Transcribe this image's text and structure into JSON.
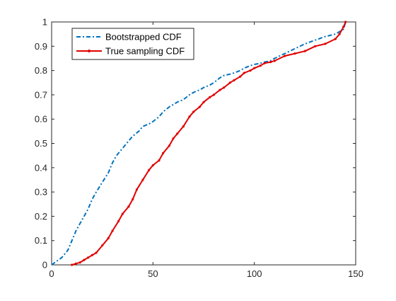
{
  "chart_data": {
    "type": "line",
    "title": "",
    "xlabel": "",
    "ylabel": "",
    "xlim": [
      0,
      150
    ],
    "ylim": [
      0,
      1
    ],
    "xticks": [
      0,
      50,
      100,
      150
    ],
    "xtick_labels": [
      "0",
      "50",
      "100",
      "150"
    ],
    "yticks": [
      0,
      0.1,
      0.2,
      0.3,
      0.4,
      0.5,
      0.6,
      0.7,
      0.8,
      0.9,
      1
    ],
    "ytick_labels": [
      "0",
      "0.1",
      "0.2",
      "0.3",
      "0.4",
      "0.5",
      "0.6",
      "0.7",
      "0.8",
      "0.9",
      "1"
    ],
    "grid": false,
    "legend_position": "top-left",
    "series": [
      {
        "name": "Bootstrapped CDF",
        "color": "#0072BD",
        "style": "dash-dot",
        "x": [
          0,
          5,
          8,
          10,
          12,
          14,
          16,
          18,
          20,
          22,
          25,
          28,
          30,
          32,
          35,
          38,
          40,
          43,
          45,
          48,
          50,
          53,
          55,
          58,
          60,
          62,
          65,
          68,
          70,
          73,
          75,
          78,
          80,
          83,
          85,
          88,
          90,
          93,
          95,
          98,
          100,
          103,
          105,
          108,
          110,
          115,
          120,
          125,
          130,
          135,
          140,
          142,
          144,
          145
        ],
        "y": [
          0,
          0.03,
          0.06,
          0.1,
          0.14,
          0.17,
          0.2,
          0.23,
          0.27,
          0.3,
          0.34,
          0.38,
          0.42,
          0.45,
          0.48,
          0.51,
          0.53,
          0.55,
          0.57,
          0.58,
          0.59,
          0.61,
          0.63,
          0.65,
          0.66,
          0.67,
          0.68,
          0.7,
          0.71,
          0.72,
          0.73,
          0.74,
          0.75,
          0.77,
          0.78,
          0.785,
          0.79,
          0.8,
          0.81,
          0.82,
          0.825,
          0.83,
          0.835,
          0.84,
          0.85,
          0.87,
          0.89,
          0.91,
          0.925,
          0.94,
          0.95,
          0.96,
          0.97,
          1.0
        ]
      },
      {
        "name": "True sampling CDF",
        "color": "#E00000",
        "style": "solid-marker",
        "x": [
          10,
          12,
          14,
          16,
          18,
          20,
          22,
          25,
          28,
          30,
          33,
          35,
          38,
          40,
          42,
          45,
          48,
          50,
          53,
          55,
          58,
          60,
          62,
          65,
          68,
          70,
          73,
          75,
          78,
          80,
          83,
          85,
          88,
          90,
          93,
          95,
          98,
          100,
          103,
          105,
          108,
          110,
          115,
          120,
          125,
          130,
          135,
          140,
          142,
          144,
          145
        ],
        "y": [
          0,
          0.005,
          0.01,
          0.02,
          0.03,
          0.04,
          0.05,
          0.08,
          0.11,
          0.14,
          0.18,
          0.21,
          0.24,
          0.27,
          0.31,
          0.35,
          0.39,
          0.41,
          0.43,
          0.46,
          0.49,
          0.52,
          0.54,
          0.57,
          0.61,
          0.63,
          0.65,
          0.67,
          0.69,
          0.7,
          0.72,
          0.73,
          0.75,
          0.76,
          0.775,
          0.79,
          0.8,
          0.81,
          0.82,
          0.83,
          0.835,
          0.84,
          0.86,
          0.87,
          0.88,
          0.9,
          0.91,
          0.93,
          0.95,
          0.98,
          1.0
        ]
      }
    ]
  }
}
